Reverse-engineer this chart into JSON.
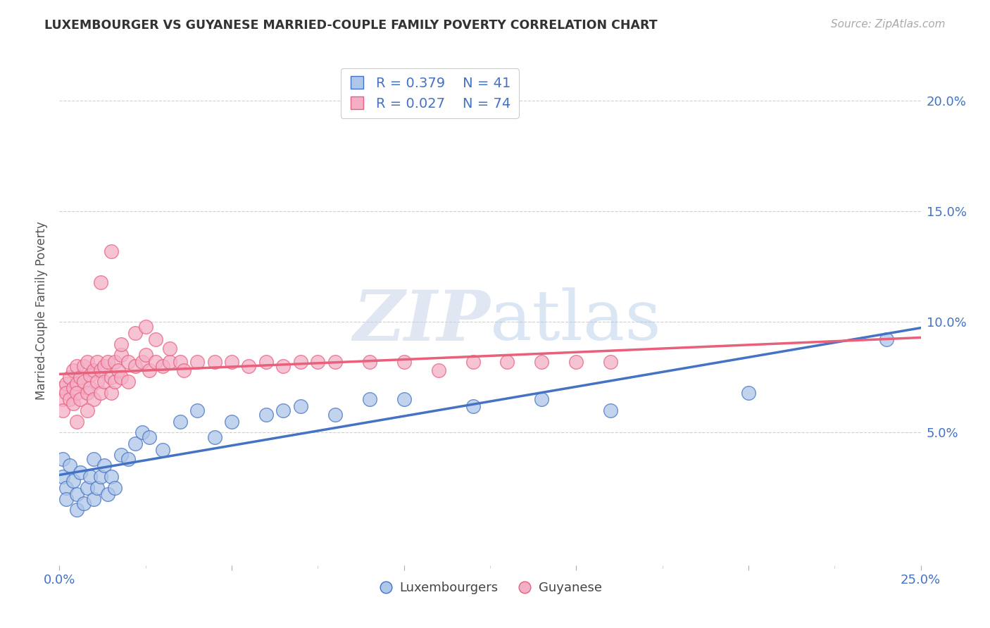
{
  "title": "LUXEMBOURGER VS GUYANESE MARRIED-COUPLE FAMILY POVERTY CORRELATION CHART",
  "source": "Source: ZipAtlas.com",
  "ylabel": "Married-Couple Family Poverty",
  "ytick_labels": [
    "5.0%",
    "10.0%",
    "15.0%",
    "20.0%"
  ],
  "ytick_values": [
    0.05,
    0.1,
    0.15,
    0.2
  ],
  "xlim": [
    0.0,
    0.25
  ],
  "ylim": [
    -0.01,
    0.22
  ],
  "luxembourg_color": "#aec6e8",
  "guyanese_color": "#f4afc8",
  "luxembourg_line_color": "#4472c4",
  "guyanese_line_color": "#e8607a",
  "legend_R_lux": "R = 0.379",
  "legend_N_lux": "N = 41",
  "legend_R_guy": "R = 0.027",
  "legend_N_guy": "N = 74",
  "watermark_zip": "ZIP",
  "watermark_atlas": "atlas",
  "background_color": "#ffffff",
  "grid_color": "#d0d0d0",
  "lux_points_x": [
    0.001,
    0.001,
    0.002,
    0.002,
    0.003,
    0.004,
    0.005,
    0.005,
    0.006,
    0.007,
    0.008,
    0.009,
    0.01,
    0.01,
    0.011,
    0.012,
    0.013,
    0.014,
    0.015,
    0.016,
    0.018,
    0.02,
    0.022,
    0.024,
    0.026,
    0.03,
    0.035,
    0.04,
    0.045,
    0.05,
    0.06,
    0.065,
    0.07,
    0.08,
    0.09,
    0.1,
    0.12,
    0.14,
    0.16,
    0.2,
    0.24
  ],
  "lux_points_y": [
    0.038,
    0.03,
    0.025,
    0.02,
    0.035,
    0.028,
    0.015,
    0.022,
    0.032,
    0.018,
    0.025,
    0.03,
    0.02,
    0.038,
    0.025,
    0.03,
    0.035,
    0.022,
    0.03,
    0.025,
    0.04,
    0.038,
    0.045,
    0.05,
    0.048,
    0.042,
    0.055,
    0.06,
    0.048,
    0.055,
    0.058,
    0.06,
    0.062,
    0.058,
    0.065,
    0.065,
    0.062,
    0.065,
    0.06,
    0.068,
    0.092
  ],
  "guy_points_x": [
    0.001,
    0.001,
    0.001,
    0.002,
    0.002,
    0.003,
    0.003,
    0.004,
    0.004,
    0.004,
    0.005,
    0.005,
    0.005,
    0.006,
    0.006,
    0.007,
    0.007,
    0.008,
    0.008,
    0.009,
    0.009,
    0.01,
    0.01,
    0.011,
    0.011,
    0.012,
    0.012,
    0.013,
    0.013,
    0.014,
    0.015,
    0.015,
    0.016,
    0.016,
    0.017,
    0.018,
    0.018,
    0.02,
    0.02,
    0.022,
    0.024,
    0.025,
    0.026,
    0.028,
    0.03,
    0.032,
    0.035,
    0.04,
    0.045,
    0.05,
    0.055,
    0.06,
    0.065,
    0.07,
    0.075,
    0.08,
    0.09,
    0.1,
    0.11,
    0.12,
    0.13,
    0.14,
    0.15,
    0.16,
    0.018,
    0.022,
    0.025,
    0.028,
    0.032,
    0.036,
    0.015,
    0.012,
    0.008,
    0.005
  ],
  "guy_points_y": [
    0.065,
    0.07,
    0.06,
    0.072,
    0.068,
    0.075,
    0.065,
    0.078,
    0.07,
    0.063,
    0.08,
    0.072,
    0.068,
    0.075,
    0.065,
    0.08,
    0.073,
    0.082,
    0.068,
    0.076,
    0.07,
    0.078,
    0.065,
    0.082,
    0.073,
    0.078,
    0.068,
    0.08,
    0.073,
    0.082,
    0.075,
    0.068,
    0.082,
    0.073,
    0.078,
    0.085,
    0.075,
    0.082,
    0.073,
    0.08,
    0.082,
    0.085,
    0.078,
    0.082,
    0.08,
    0.082,
    0.082,
    0.082,
    0.082,
    0.082,
    0.08,
    0.082,
    0.08,
    0.082,
    0.082,
    0.082,
    0.082,
    0.082,
    0.078,
    0.082,
    0.082,
    0.082,
    0.082,
    0.082,
    0.09,
    0.095,
    0.098,
    0.092,
    0.088,
    0.078,
    0.132,
    0.118,
    0.06,
    0.055
  ]
}
